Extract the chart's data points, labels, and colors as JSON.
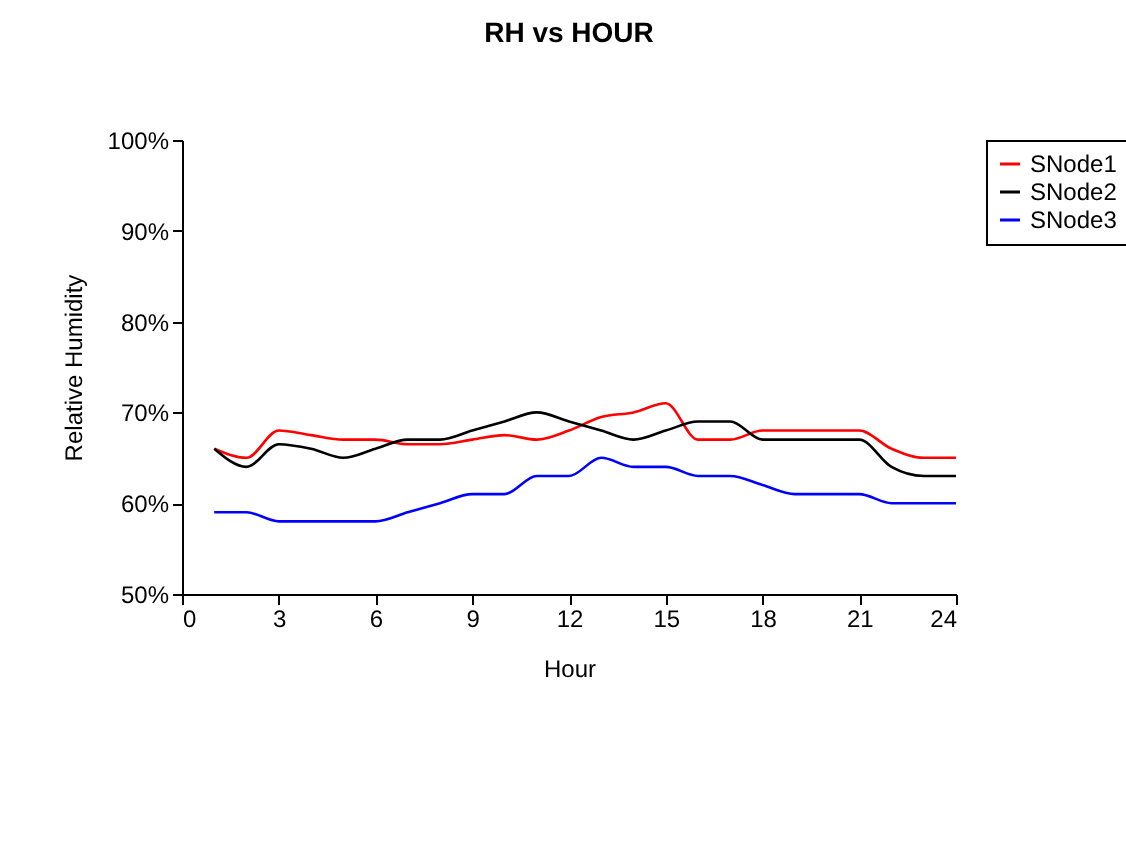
{
  "chart_data": {
    "type": "line",
    "title": "RH vs HOUR",
    "xlabel": "Hour",
    "ylabel": "Relative Humidity",
    "x": [
      1,
      2,
      3,
      4,
      5,
      6,
      7,
      8,
      9,
      10,
      11,
      12,
      13,
      14,
      15,
      16,
      17,
      18,
      19,
      20,
      21,
      22,
      23,
      24
    ],
    "xlim": [
      0,
      24
    ],
    "xticks": [
      0,
      3,
      6,
      9,
      12,
      15,
      18,
      21,
      24
    ],
    "ylim": [
      50,
      100
    ],
    "yticks": [
      {
        "value": 50,
        "label": "50%"
      },
      {
        "value": 60,
        "label": "60%"
      },
      {
        "value": 70,
        "label": "70%"
      },
      {
        "value": 80,
        "label": "80%"
      },
      {
        "value": 90,
        "label": "90%"
      },
      {
        "value": 100,
        "label": "100%"
      }
    ],
    "grid": false,
    "legend": "right",
    "marker": "none",
    "line_style": "solid",
    "series": [
      {
        "name": "SNode1",
        "color": "#ff0000",
        "values": [
          66,
          65,
          68,
          67.5,
          67,
          67,
          66.5,
          66.5,
          67,
          67.5,
          67,
          68,
          69.5,
          70,
          71,
          67,
          67,
          68,
          68,
          68,
          68,
          66,
          65,
          65
        ]
      },
      {
        "name": "SNode2",
        "color": "#000000",
        "values": [
          66,
          64,
          66.5,
          66,
          65,
          66,
          67,
          67,
          68,
          69,
          70,
          69,
          68,
          67,
          68,
          69,
          69,
          67,
          67,
          67,
          67,
          64,
          63,
          63
        ]
      },
      {
        "name": "SNode3",
        "color": "#0000ff",
        "values": [
          59,
          59,
          58,
          58,
          58,
          58,
          59,
          60,
          61,
          61,
          63,
          63,
          65,
          64,
          64,
          63,
          63,
          62,
          61,
          61,
          61,
          60,
          60,
          60
        ]
      }
    ]
  }
}
